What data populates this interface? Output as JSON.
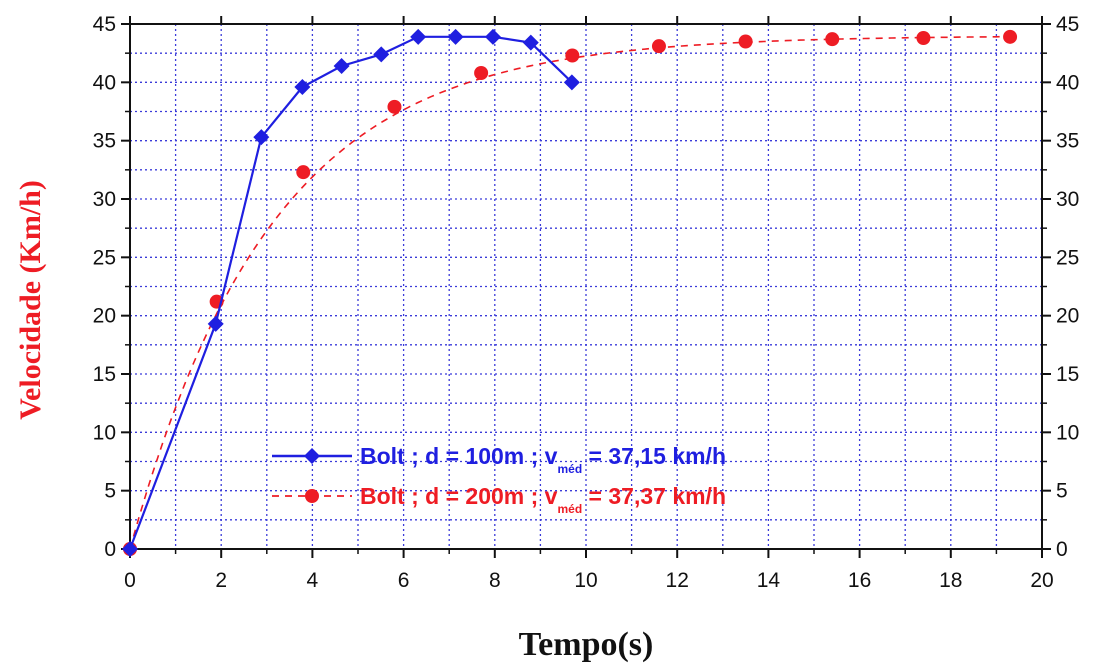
{
  "chart_data": {
    "type": "line",
    "xlabel": "Tempo(s)",
    "ylabel": "Velocidade (Km/h)",
    "xlim": [
      0,
      20
    ],
    "ylim": [
      0,
      45
    ],
    "x_ticks": [
      "0",
      "2",
      "4",
      "6",
      "8",
      "10",
      "12",
      "14",
      "16",
      "18",
      "20"
    ],
    "y_ticks": [
      "0",
      "5",
      "10",
      "15",
      "20",
      "25",
      "30",
      "35",
      "40",
      "45"
    ],
    "grid": true,
    "legend_position": "lower center",
    "colors": {
      "series1": "#1f1fe0",
      "series2": "#ee1c24",
      "grid": "#3b3bd9",
      "axis": "#111111",
      "ylabel": "#ee1c24"
    },
    "series": [
      {
        "legend": {
          "prefix": "Bolt ; d = 100m ; v",
          "sub": "méd",
          "suffix": " = 37,15 km/h"
        },
        "line_style": "solid",
        "marker": "diamond",
        "x": [
          0,
          1.88,
          2.88,
          3.78,
          4.64,
          5.51,
          6.32,
          7.14,
          7.96,
          8.79,
          9.69
        ],
        "y": [
          0,
          19.3,
          35.3,
          39.6,
          41.4,
          42.4,
          43.9,
          43.9,
          43.9,
          43.4,
          40.0
        ]
      },
      {
        "legend": {
          "prefix": "Bolt ; d = 200m ; v",
          "sub": "méd",
          "suffix": " = 37,37 km/h"
        },
        "line_style": "dashed",
        "marker": "circle",
        "x": [
          0,
          1.9,
          3.8,
          5.8,
          7.7,
          9.7,
          11.6,
          13.5,
          15.4,
          17.4,
          19.3
        ],
        "y": [
          0,
          21.2,
          32.3,
          37.9,
          40.8,
          42.3,
          43.1,
          43.5,
          43.7,
          43.8,
          43.9
        ],
        "fit_curve": true
      }
    ]
  }
}
